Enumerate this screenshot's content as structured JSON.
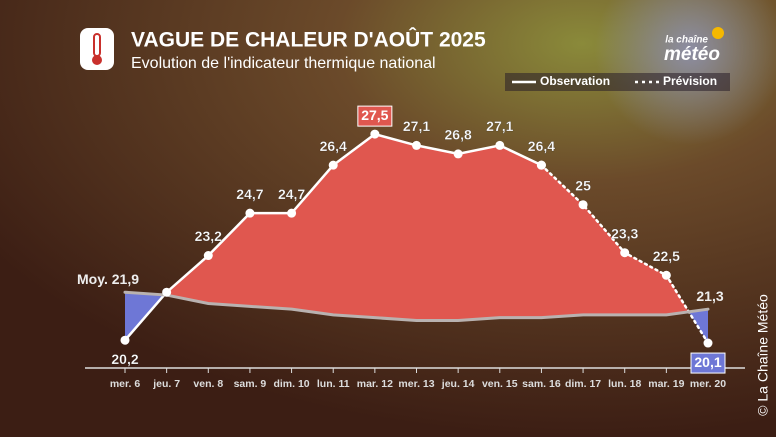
{
  "chart_data": {
    "type": "line",
    "title": "VAGUE DE CHALEUR D'AOÛT 2025",
    "subtitle": "Evolution de l'indicateur thermique national",
    "categories": [
      "mer. 6",
      "jeu. 7",
      "ven. 8",
      "sam. 9",
      "dim. 10",
      "lun. 11",
      "mar. 12",
      "mer. 13",
      "jeu. 14",
      "ven. 15",
      "sam. 16",
      "dim. 17",
      "lun. 18",
      "mar. 19",
      "mer. 20"
    ],
    "series": [
      {
        "name": "Observation",
        "color": "#ffffff",
        "style": "solid",
        "values": [
          20.2,
          21.9,
          23.2,
          24.7,
          24.7,
          26.4,
          27.5,
          27.1,
          26.8,
          27.1,
          26.4,
          null,
          null,
          null,
          null
        ],
        "value_labels": [
          "20,2",
          null,
          "23,2",
          "24,7",
          "24,7",
          "26,4",
          "27,5",
          "27,1",
          "26,8",
          "27,1",
          "26,4",
          null,
          null,
          null,
          null
        ]
      },
      {
        "name": "Prévision",
        "color": "#ffffff",
        "style": "dotted",
        "values": [
          null,
          null,
          null,
          null,
          null,
          null,
          null,
          null,
          null,
          null,
          26.4,
          25,
          23.3,
          22.5,
          20.1
        ],
        "value_labels": [
          null,
          null,
          null,
          null,
          null,
          null,
          null,
          null,
          null,
          null,
          null,
          "25",
          "23,3",
          "22,5",
          "20,1"
        ]
      },
      {
        "color": "#b9b2b0",
        "style": "normal",
        "values": [
          21.9,
          21.8,
          21.5,
          21.4,
          21.3,
          21.1,
          21.0,
          20.9,
          20.9,
          21.0,
          21.0,
          21.1,
          21.1,
          21.1,
          21.3
        ],
        "value_labels": [
          "Moy. 21,9",
          null,
          null,
          null,
          null,
          null,
          null,
          null,
          null,
          null,
          null,
          null,
          null,
          null,
          "21,3"
        ]
      }
    ],
    "above_color": "#e0574f",
    "below_color": "#6e77d6",
    "ylim": [
      19.5,
      28
    ],
    "copyright": "© La Chaîne Météo",
    "logo": [
      "la chaîne",
      "météo"
    ]
  }
}
